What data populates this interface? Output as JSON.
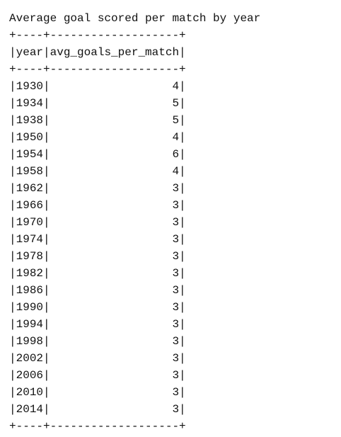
{
  "title": "Average goal scored per match by year",
  "table": {
    "border": "+----+-------------------+",
    "columns": [
      "year",
      "avg_goals_per_match"
    ],
    "rows": [
      {
        "year": "1930",
        "avg_goals_per_match": "4"
      },
      {
        "year": "1934",
        "avg_goals_per_match": "5"
      },
      {
        "year": "1938",
        "avg_goals_per_match": "5"
      },
      {
        "year": "1950",
        "avg_goals_per_match": "4"
      },
      {
        "year": "1954",
        "avg_goals_per_match": "6"
      },
      {
        "year": "1958",
        "avg_goals_per_match": "4"
      },
      {
        "year": "1962",
        "avg_goals_per_match": "3"
      },
      {
        "year": "1966",
        "avg_goals_per_match": "3"
      },
      {
        "year": "1970",
        "avg_goals_per_match": "3"
      },
      {
        "year": "1974",
        "avg_goals_per_match": "3"
      },
      {
        "year": "1978",
        "avg_goals_per_match": "3"
      },
      {
        "year": "1982",
        "avg_goals_per_match": "3"
      },
      {
        "year": "1986",
        "avg_goals_per_match": "3"
      },
      {
        "year": "1990",
        "avg_goals_per_match": "3"
      },
      {
        "year": "1994",
        "avg_goals_per_match": "3"
      },
      {
        "year": "1998",
        "avg_goals_per_match": "3"
      },
      {
        "year": "2002",
        "avg_goals_per_match": "3"
      },
      {
        "year": "2006",
        "avg_goals_per_match": "3"
      },
      {
        "year": "2010",
        "avg_goals_per_match": "3"
      },
      {
        "year": "2014",
        "avg_goals_per_match": "3"
      }
    ]
  }
}
